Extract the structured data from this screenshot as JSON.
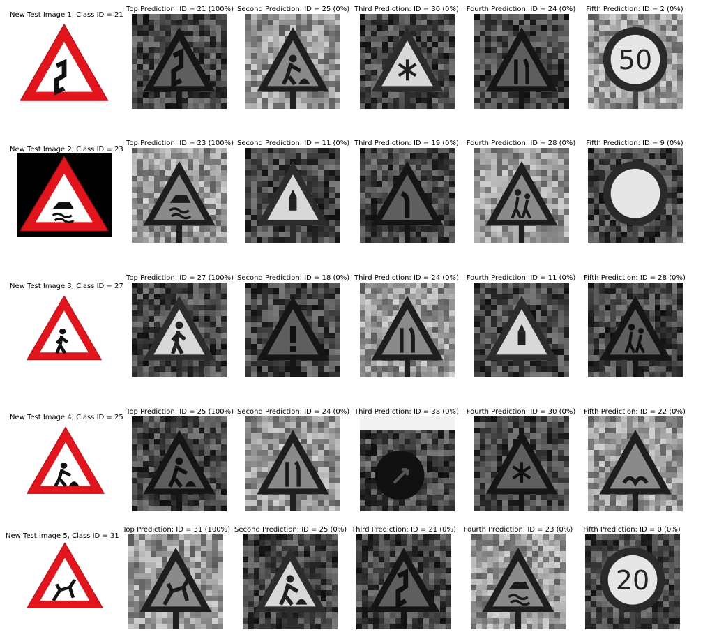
{
  "rows": [
    {
      "test_title": "New Test Image 1, Class ID = 21",
      "test_sign": "double-curve-sign-icon",
      "predictions": [
        {
          "label": "Top Prediction: ID = 21 (100%)",
          "content": "double-curve"
        },
        {
          "label": "Second Prediction: ID = 25 (0%)",
          "content": "road-work"
        },
        {
          "label": "Third Prediction: ID = 30 (0%)",
          "content": "snowflake"
        },
        {
          "label": "Fourth Prediction: ID = 24 (0%)",
          "content": "road-narrows"
        },
        {
          "label": "Fifth Prediction: ID = 2 (0%)",
          "content": "speed-50"
        }
      ]
    },
    {
      "test_title": "New Test Image 2, Class ID = 23",
      "test_sign": "slippery-road-sign-icon",
      "predictions": [
        {
          "label": "Top Prediction: ID = 23 (100%)",
          "content": "slippery"
        },
        {
          "label": "Second Prediction: ID = 11 (0%)",
          "content": "right-of-way"
        },
        {
          "label": "Third Prediction: ID = 19 (0%)",
          "content": "curve-left"
        },
        {
          "label": "Fourth Prediction: ID = 28 (0%)",
          "content": "children"
        },
        {
          "label": "Fifth Prediction: ID = 9 (0%)",
          "content": "no-passing"
        }
      ]
    },
    {
      "test_title": "New Test Image 3, Class ID = 27",
      "test_sign": "pedestrian-sign-icon",
      "predictions": [
        {
          "label": "Top Prediction: ID = 27 (100%)",
          "content": "pedestrian"
        },
        {
          "label": "Second Prediction: ID = 18 (0%)",
          "content": "caution"
        },
        {
          "label": "Third Prediction: ID = 24 (0%)",
          "content": "road-narrows"
        },
        {
          "label": "Fourth Prediction: ID = 11 (0%)",
          "content": "right-of-way"
        },
        {
          "label": "Fifth Prediction: ID = 28 (0%)",
          "content": "children"
        }
      ]
    },
    {
      "test_title": "New Test Image 4, Class ID = 25",
      "test_sign": "road-work-sign-icon",
      "predictions": [
        {
          "label": "Top Prediction: ID = 25 (100%)",
          "content": "road-work"
        },
        {
          "label": "Second Prediction: ID = 24 (0%)",
          "content": "road-narrows"
        },
        {
          "label": "Third Prediction: ID = 38 (0%)",
          "content": "keep-right"
        },
        {
          "label": "Fourth Prediction: ID = 30 (0%)",
          "content": "snowflake"
        },
        {
          "label": "Fifth Prediction: ID = 22 (0%)",
          "content": "bumpy"
        }
      ]
    },
    {
      "test_title": "New Test Image 5, Class ID = 31",
      "test_sign": "wild-animals-sign-icon",
      "predictions": [
        {
          "label": "Top Prediction: ID = 31 (100%)",
          "content": "wild-animals"
        },
        {
          "label": "Second Prediction: ID = 25 (0%)",
          "content": "road-work"
        },
        {
          "label": "Third Prediction: ID = 21 (0%)",
          "content": "double-curve"
        },
        {
          "label": "Fourth Prediction: ID = 23 (0%)",
          "content": "slippery"
        },
        {
          "label": "Fifth Prediction: ID = 0 (0%)",
          "content": "speed-20"
        }
      ]
    }
  ],
  "speed_limit_values": {
    "speed-50": "50",
    "speed-20": "20"
  }
}
